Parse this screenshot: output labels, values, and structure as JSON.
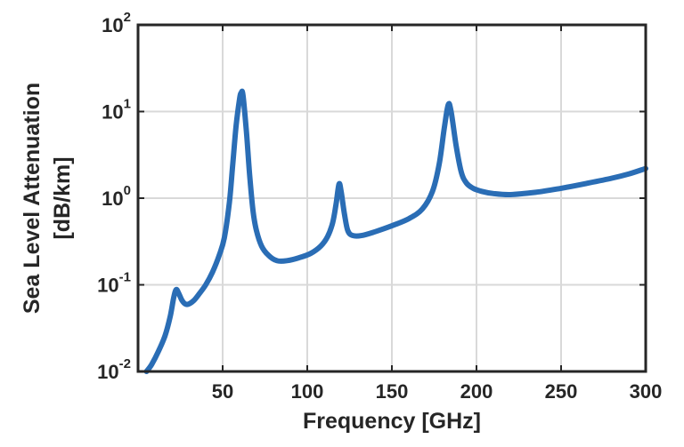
{
  "chart_data": {
    "type": "line",
    "title": "",
    "xlabel": "Frequency [GHz]",
    "ylabel_lines": [
      "Sea Level Attenuation",
      "[dB/km]"
    ],
    "xlim": [
      0,
      300
    ],
    "ylim": [
      0.01,
      100
    ],
    "yscale": "log",
    "grid": true,
    "legend": "none",
    "x_ticks": [
      50,
      100,
      150,
      200,
      250,
      300
    ],
    "x_tick_labels": [
      "50",
      "100",
      "150",
      "200",
      "250",
      "300"
    ],
    "y_ticks": [
      {
        "value": 0.01,
        "base": "10",
        "exp": "-2"
      },
      {
        "value": 0.1,
        "base": "10",
        "exp": "-1"
      },
      {
        "value": 1,
        "base": "10",
        "exp": "0"
      },
      {
        "value": 10,
        "base": "10",
        "exp": "1"
      },
      {
        "value": 100,
        "base": "10",
        "exp": "2"
      }
    ],
    "series": [
      {
        "color": "#2a6db5",
        "points": [
          [
            5,
            0.01
          ],
          [
            8,
            0.012
          ],
          [
            12,
            0.017
          ],
          [
            16,
            0.026
          ],
          [
            19,
            0.043
          ],
          [
            21,
            0.07
          ],
          [
            22.5,
            0.088
          ],
          [
            24,
            0.08
          ],
          [
            26,
            0.066
          ],
          [
            28,
            0.06
          ],
          [
            30,
            0.06
          ],
          [
            33,
            0.066
          ],
          [
            36,
            0.078
          ],
          [
            40,
            0.1
          ],
          [
            44,
            0.14
          ],
          [
            48,
            0.22
          ],
          [
            51,
            0.35
          ],
          [
            54,
            0.9
          ],
          [
            56,
            2.5
          ],
          [
            58,
            7
          ],
          [
            60,
            14
          ],
          [
            61,
            16.5
          ],
          [
            62,
            15.5
          ],
          [
            64,
            6
          ],
          [
            66,
            1.8
          ],
          [
            68,
            0.7
          ],
          [
            70,
            0.42
          ],
          [
            73,
            0.28
          ],
          [
            77,
            0.22
          ],
          [
            82,
            0.19
          ],
          [
            88,
            0.19
          ],
          [
            95,
            0.205
          ],
          [
            102,
            0.23
          ],
          [
            108,
            0.28
          ],
          [
            112,
            0.36
          ],
          [
            115,
            0.52
          ],
          [
            117,
            0.85
          ],
          [
            118.75,
            1.45
          ],
          [
            120,
            1.2
          ],
          [
            122,
            0.65
          ],
          [
            124,
            0.42
          ],
          [
            127,
            0.37
          ],
          [
            132,
            0.37
          ],
          [
            140,
            0.41
          ],
          [
            150,
            0.48
          ],
          [
            160,
            0.58
          ],
          [
            168,
            0.75
          ],
          [
            174,
            1.2
          ],
          [
            178,
            2.5
          ],
          [
            181,
            6.5
          ],
          [
            183.3,
            12
          ],
          [
            185,
            10
          ],
          [
            188,
            4
          ],
          [
            191,
            2
          ],
          [
            194,
            1.5
          ],
          [
            198,
            1.3
          ],
          [
            203,
            1.2
          ],
          [
            210,
            1.13
          ],
          [
            220,
            1.1
          ],
          [
            235,
            1.17
          ],
          [
            250,
            1.3
          ],
          [
            265,
            1.48
          ],
          [
            280,
            1.7
          ],
          [
            290,
            1.9
          ],
          [
            300,
            2.2
          ]
        ]
      }
    ]
  }
}
